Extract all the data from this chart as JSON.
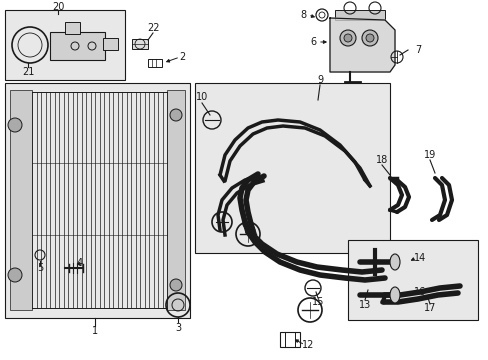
{
  "bg_color": "#ffffff",
  "line_color": "#1a1a1a",
  "box_fill": "#e8e8e8",
  "fig_w": 4.89,
  "fig_h": 3.6,
  "dpi": 100
}
